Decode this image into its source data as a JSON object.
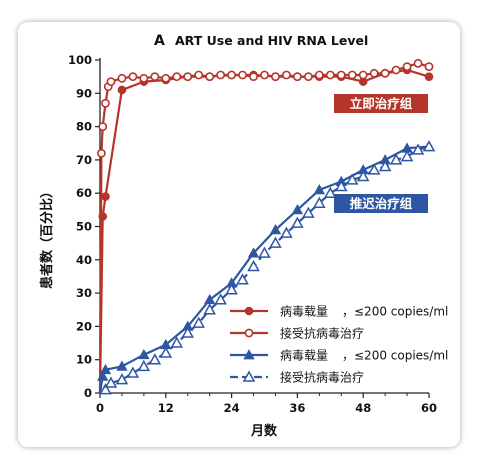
{
  "chart_data": {
    "type": "line",
    "panel_letter": "A",
    "title": "ART Use and HIV RNA Level",
    "xlabel": "月数",
    "ylabel": "患者数（百分比）",
    "xlim": [
      0,
      60
    ],
    "ylim": [
      0,
      100
    ],
    "xticks": [
      0,
      12,
      24,
      36,
      48,
      60
    ],
    "yticks": [
      0,
      10,
      20,
      30,
      40,
      50,
      60,
      70,
      80,
      90,
      100
    ],
    "grid": false,
    "group_labels": [
      {
        "text": "立即治疗组",
        "color": "#b5352a",
        "position": "upper-right"
      },
      {
        "text": "推迟治疗组",
        "color": "#2e56a3",
        "position": "middle-right"
      }
    ],
    "legend": {
      "position": "bottom-right",
      "entries": [
        {
          "label": "病毒载量",
          "suffix": "，≤200 copies/ml",
          "series": 0
        },
        {
          "label": "接受抗病毒治疗",
          "suffix": "",
          "series": 1
        },
        {
          "label": "病毒载量",
          "suffix": "，≤200 copies/ml",
          "series": 2
        },
        {
          "label": "接受抗病毒治疗",
          "suffix": "",
          "series": 3
        }
      ]
    },
    "series": [
      {
        "color": "#b5352a",
        "marker": "circle-filled",
        "line": "solid",
        "x": [
          0,
          0.5,
          1,
          4,
          8,
          12,
          16,
          20,
          24,
          28,
          32,
          36,
          40,
          44,
          48,
          52,
          56,
          60
        ],
        "y": [
          0,
          53,
          59,
          91,
          93.5,
          94,
          95,
          95,
          95.5,
          95.5,
          95,
          95,
          95,
          95,
          93.5,
          96,
          97,
          95
        ]
      },
      {
        "color": "#b5352a",
        "marker": "circle-open",
        "line": "solid",
        "x": [
          0,
          0.25,
          0.5,
          1,
          1.5,
          2,
          4,
          6,
          8,
          10,
          12,
          14,
          16,
          18,
          20,
          22,
          24,
          26,
          28,
          30,
          32,
          34,
          36,
          38,
          40,
          42,
          44,
          46,
          48,
          50,
          52,
          54,
          56,
          58,
          60
        ],
        "y": [
          0,
          72,
          80,
          87,
          92,
          93.5,
          94.5,
          95,
          94.5,
          95,
          94.5,
          95,
          95,
          95.5,
          95,
          95.5,
          95.5,
          95.5,
          95,
          95.5,
          95,
          95.5,
          95,
          95,
          95.5,
          95.5,
          95.5,
          95.5,
          95.5,
          96,
          96,
          97,
          98,
          99,
          98
        ]
      },
      {
        "color": "#2e56a3",
        "marker": "triangle-filled",
        "line": "solid",
        "x": [
          0,
          0.5,
          1,
          4,
          8,
          12,
          16,
          20,
          24,
          28,
          32,
          36,
          40,
          44,
          48,
          52,
          56,
          60
        ],
        "y": [
          0,
          5,
          7,
          8,
          11.5,
          14.5,
          20,
          28,
          33,
          42,
          49,
          55,
          61,
          63.5,
          67,
          70,
          73.5,
          74
        ]
      },
      {
        "color": "#2e56a3",
        "marker": "triangle-open",
        "line": "dashed",
        "x": [
          0,
          1,
          2,
          4,
          6,
          8,
          10,
          12,
          14,
          16,
          18,
          20,
          22,
          24,
          26,
          28,
          30,
          32,
          34,
          36,
          38,
          40,
          42,
          44,
          46,
          48,
          50,
          52,
          54,
          56,
          58,
          60
        ],
        "y": [
          0,
          1,
          3,
          4,
          6,
          8,
          10,
          12,
          15,
          18,
          21,
          25,
          28,
          31,
          34,
          38,
          42,
          45,
          48,
          51,
          54,
          57,
          60,
          62,
          64,
          65,
          67,
          68,
          70,
          71,
          73,
          74
        ]
      }
    ]
  }
}
